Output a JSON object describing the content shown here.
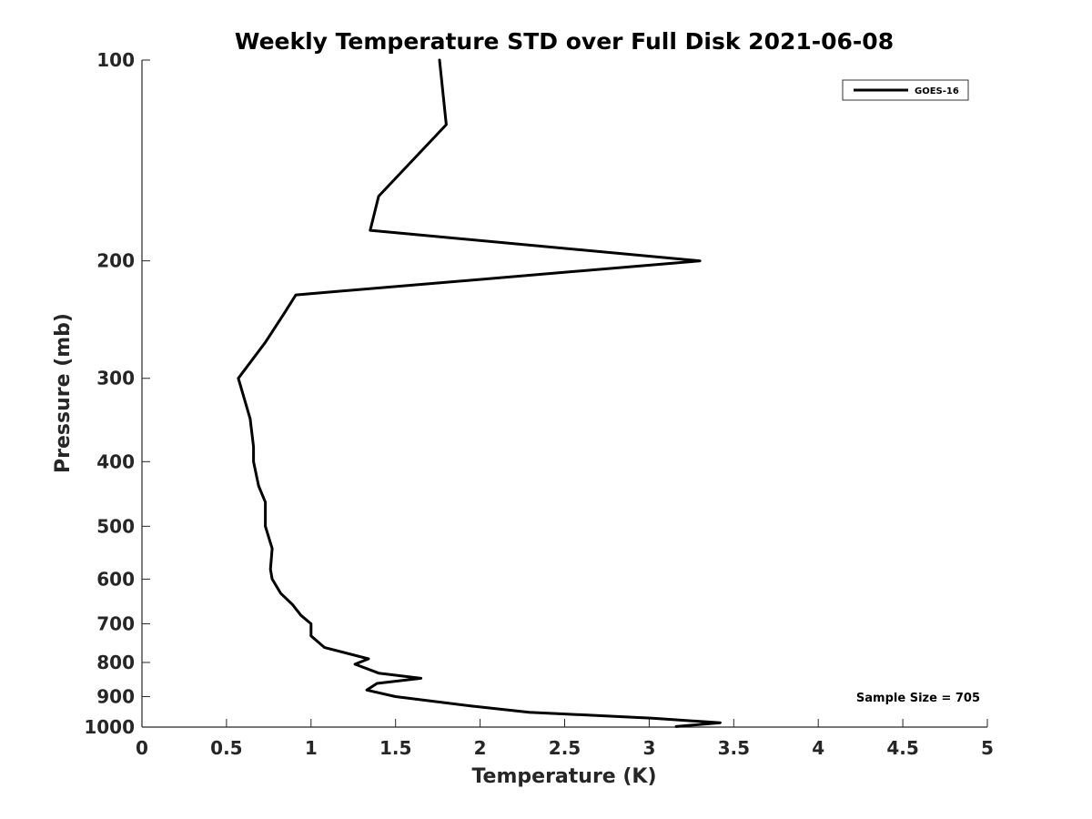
{
  "chart_data": {
    "type": "line",
    "title": "Weekly Temperature STD over Full Disk 2021-06-08",
    "xlabel": "Temperature (K)",
    "ylabel": "Pressure (mb)",
    "xlim": [
      0,
      5
    ],
    "ylim": [
      100,
      1000
    ],
    "y_scale": "log",
    "y_reversed": true,
    "grid": false,
    "legend_position": "top-right",
    "x_ticks": [
      "0",
      "0.5",
      "1",
      "1.5",
      "2",
      "2.5",
      "3",
      "3.5",
      "4",
      "4.5",
      "5"
    ],
    "x_tick_values": [
      0,
      0.5,
      1,
      1.5,
      2,
      2.5,
      3,
      3.5,
      4,
      4.5,
      5
    ],
    "y_ticks": [
      "100",
      "200",
      "300",
      "400",
      "500",
      "600",
      "700",
      "800",
      "900",
      "1000"
    ],
    "y_tick_values": [
      100,
      200,
      300,
      400,
      500,
      600,
      700,
      800,
      900,
      1000
    ],
    "series": [
      {
        "name": "GOES-16",
        "color": "#000000",
        "points": [
          [
            1.76,
            100
          ],
          [
            1.8,
            125
          ],
          [
            1.4,
            160
          ],
          [
            1.35,
            180
          ],
          [
            3.3,
            200
          ],
          [
            0.91,
            225
          ],
          [
            0.84,
            240
          ],
          [
            0.73,
            265
          ],
          [
            0.57,
            300
          ],
          [
            0.64,
            345
          ],
          [
            0.66,
            380
          ],
          [
            0.66,
            400
          ],
          [
            0.69,
            435
          ],
          [
            0.73,
            460
          ],
          [
            0.73,
            500
          ],
          [
            0.77,
            540
          ],
          [
            0.76,
            580
          ],
          [
            0.77,
            600
          ],
          [
            0.82,
            630
          ],
          [
            0.89,
            655
          ],
          [
            0.94,
            680
          ],
          [
            1.0,
            700
          ],
          [
            1.0,
            730
          ],
          [
            1.08,
            760
          ],
          [
            1.34,
            790
          ],
          [
            1.26,
            805
          ],
          [
            1.4,
            830
          ],
          [
            1.65,
            845
          ],
          [
            1.39,
            860
          ],
          [
            1.33,
            880
          ],
          [
            1.5,
            900
          ],
          [
            1.95,
            930
          ],
          [
            2.29,
            950
          ],
          [
            3.02,
            970
          ],
          [
            3.42,
            985
          ],
          [
            3.16,
            998
          ]
        ]
      }
    ],
    "annotations": [
      "Sample Size = 705"
    ]
  }
}
